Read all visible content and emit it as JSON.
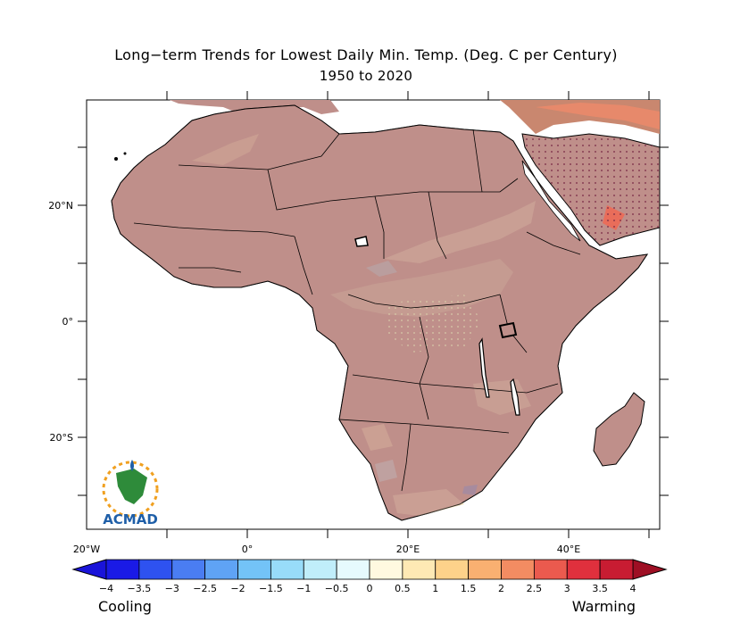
{
  "title": "Long−term Trends for Lowest Daily Min. Temp. (Deg. C per Century)",
  "subtitle": "1950 to 2020",
  "map": {
    "lat_ticks": [
      "20°N",
      "0°",
      "20°S"
    ],
    "lon_ticks": [
      "20°W",
      "0°",
      "20°E",
      "40°E"
    ],
    "land_color": "#bf8f8a",
    "ocean_color": "#ffffff",
    "stipple_color": "#7a2a45"
  },
  "logo": {
    "text": "ACMAD",
    "color": "#1f5fa8",
    "accent": "#2e8b3a",
    "ray_color": "#f0a020"
  },
  "colorbar": {
    "labels": [
      "−4",
      "−3.5",
      "−3",
      "−2.5",
      "−2",
      "−1.5",
      "−1",
      "−0.5",
      "0",
      "0.5",
      "1",
      "1.5",
      "2",
      "2.5",
      "3",
      "3.5",
      "4"
    ],
    "colors": [
      "#1a1ae6",
      "#2e52f0",
      "#4a7df2",
      "#5fa3f5",
      "#73c3f7",
      "#98dcf9",
      "#c0eefa",
      "#e6fafd",
      "#fff9e0",
      "#fee9b4",
      "#fdd28a",
      "#f9b071",
      "#f38c62",
      "#eb5a4e",
      "#e0303d",
      "#c81c32"
    ],
    "low_arrow": "#1a14d9",
    "high_arrow": "#9e0f24",
    "cooling": "Cooling",
    "warming": "Warming"
  }
}
